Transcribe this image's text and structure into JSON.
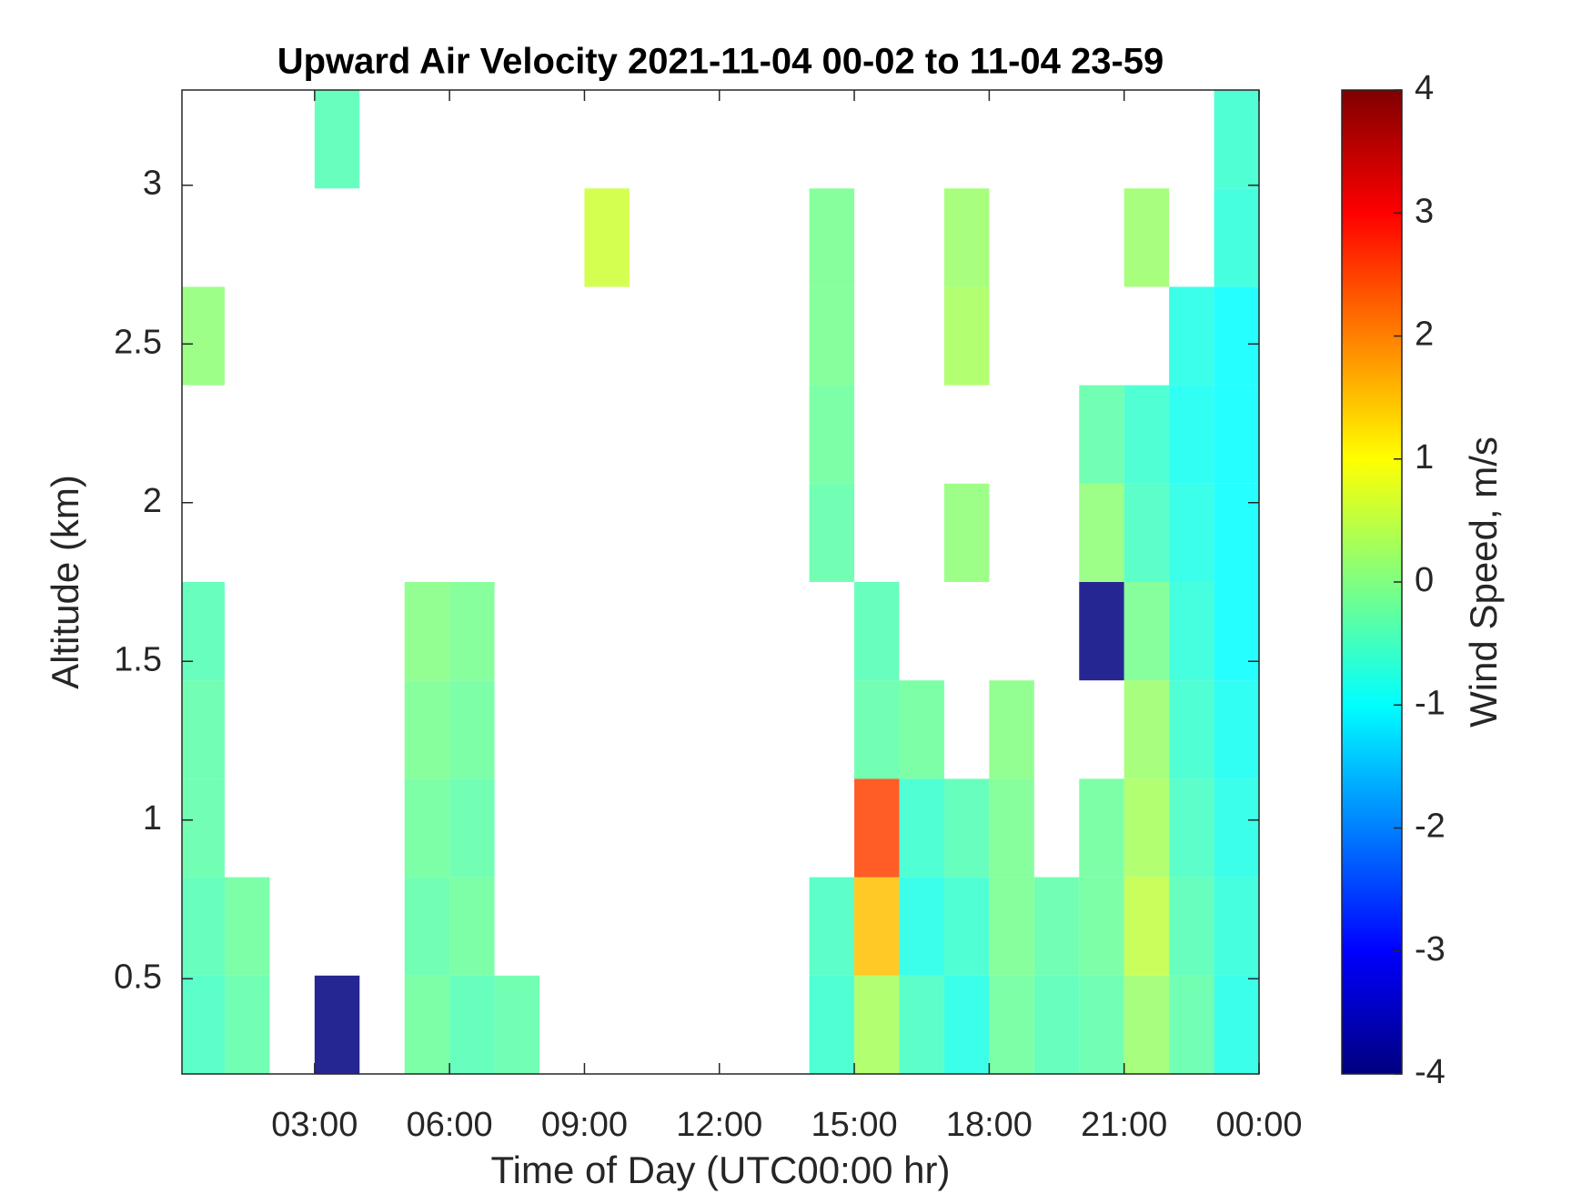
{
  "chart_data": {
    "type": "heatmap",
    "title": "Upward Air Velocity 2021-11-04 00-02 to 11-04 23-59",
    "x_label": "Time of Day (UTC00:00 hr)",
    "y_label": "Altitude (km)",
    "colorbar_label": "Wind Speed, m/s",
    "colormap": "jet",
    "xlim": [
      0.05,
      24
    ],
    "ylim": [
      0.2,
      3.3
    ],
    "clim": [
      -4,
      4
    ],
    "xticks": [
      {
        "value": 3,
        "label": "03:00"
      },
      {
        "value": 6,
        "label": "06:00"
      },
      {
        "value": 9,
        "label": "09:00"
      },
      {
        "value": 12,
        "label": "12:00"
      },
      {
        "value": 15,
        "label": "15:00"
      },
      {
        "value": 18,
        "label": "18:00"
      },
      {
        "value": 21,
        "label": "21:00"
      },
      {
        "value": 24,
        "label": "00:00"
      }
    ],
    "yticks": [
      0.5,
      1,
      1.5,
      2,
      2.5,
      3
    ],
    "cticks": [
      -4,
      -3,
      -2,
      -1,
      0,
      1,
      2,
      3,
      4
    ],
    "x_bins": [
      0.05,
      1,
      2,
      3,
      4,
      5,
      6,
      7,
      8,
      9,
      10,
      11,
      12,
      13,
      14,
      15,
      16,
      17,
      18,
      19,
      20,
      21,
      22,
      23,
      24
    ],
    "y_bins": [
      0.2,
      0.51,
      0.82,
      1.13,
      1.44,
      1.75,
      2.06,
      2.37,
      2.68,
      2.99,
      3.3
    ],
    "values": [
      [
        -0.5,
        -0.3,
        null,
        -4,
        null,
        -0.2,
        -0.4,
        -0.3,
        null,
        null,
        null,
        null,
        null,
        null,
        -0.6,
        0.3,
        -0.5,
        -0.8,
        -0.2,
        -0.4,
        -0.3,
        0.2,
        -0.3,
        -0.8
      ],
      [
        -0.4,
        -0.2,
        null,
        null,
        null,
        -0.3,
        -0.2,
        null,
        null,
        null,
        null,
        null,
        null,
        null,
        -0.5,
        1.5,
        -0.8,
        -0.6,
        -0.1,
        -0.3,
        -0.2,
        0.5,
        -0.4,
        -0.7
      ],
      [
        -0.3,
        null,
        null,
        null,
        null,
        -0.2,
        -0.3,
        null,
        null,
        null,
        null,
        null,
        null,
        null,
        null,
        2.5,
        -0.6,
        -0.4,
        -0.1,
        null,
        -0.2,
        0.3,
        -0.5,
        -0.8
      ],
      [
        -0.3,
        null,
        null,
        null,
        null,
        -0.1,
        -0.2,
        null,
        null,
        null,
        null,
        null,
        null,
        null,
        null,
        -0.3,
        -0.2,
        null,
        0,
        null,
        null,
        0.2,
        -0.6,
        -0.9
      ],
      [
        -0.4,
        null,
        null,
        null,
        null,
        0,
        -0.1,
        null,
        null,
        null,
        null,
        null,
        null,
        null,
        null,
        -0.4,
        null,
        null,
        null,
        null,
        -4,
        -0.1,
        -0.7,
        -1
      ],
      [
        null,
        null,
        null,
        null,
        null,
        null,
        null,
        null,
        null,
        null,
        null,
        null,
        null,
        null,
        -0.3,
        null,
        null,
        0.1,
        null,
        null,
        0.1,
        -0.5,
        -0.8,
        -1
      ],
      [
        null,
        null,
        null,
        null,
        null,
        null,
        null,
        null,
        null,
        null,
        null,
        null,
        null,
        null,
        -0.2,
        null,
        null,
        null,
        null,
        null,
        -0.3,
        -0.6,
        -0.9,
        -1
      ],
      [
        0.1,
        null,
        null,
        null,
        null,
        null,
        null,
        null,
        null,
        null,
        null,
        null,
        null,
        null,
        -0.1,
        null,
        null,
        0.3,
        null,
        null,
        null,
        null,
        -0.8,
        -1
      ],
      [
        null,
        null,
        null,
        null,
        null,
        null,
        null,
        null,
        null,
        0.6,
        null,
        null,
        null,
        null,
        -0.1,
        null,
        null,
        0.2,
        null,
        null,
        null,
        0.2,
        null,
        -0.7
      ],
      [
        null,
        null,
        null,
        -0.4,
        null,
        null,
        null,
        null,
        null,
        null,
        null,
        null,
        null,
        null,
        null,
        null,
        null,
        null,
        null,
        null,
        null,
        null,
        null,
        -0.6
      ]
    ]
  }
}
